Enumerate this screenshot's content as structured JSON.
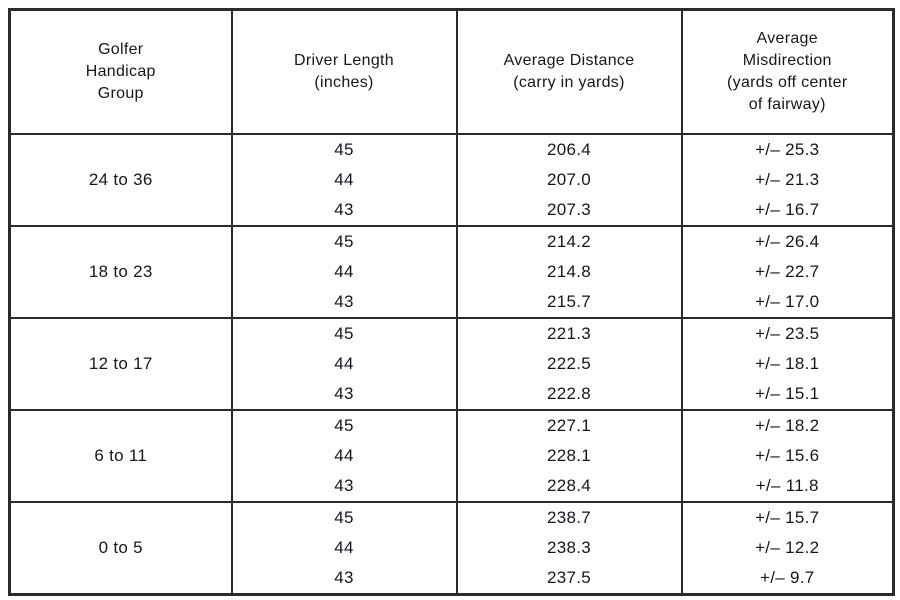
{
  "colors": {
    "background": "#ffffff",
    "border": "#2b2b2b",
    "text": "#16161e"
  },
  "table": {
    "header_lines": [
      [
        "Golfer",
        "Handicap",
        "Group"
      ],
      [
        "Driver Length",
        "(inches)"
      ],
      [
        "Average Distance",
        "(carry in yards)"
      ],
      [
        "Average",
        "Misdirection",
        "(yards off center",
        "of fairway)"
      ]
    ],
    "groups": [
      {
        "label": "24 to 36",
        "rows": [
          {
            "length": "45",
            "distance": "206.4",
            "misdirection": "+/– 25.3"
          },
          {
            "length": "44",
            "distance": "207.0",
            "misdirection": "+/– 21.3"
          },
          {
            "length": "43",
            "distance": "207.3",
            "misdirection": "+/– 16.7"
          }
        ]
      },
      {
        "label": "18 to 23",
        "rows": [
          {
            "length": "45",
            "distance": "214.2",
            "misdirection": "+/– 26.4"
          },
          {
            "length": "44",
            "distance": "214.8",
            "misdirection": "+/– 22.7"
          },
          {
            "length": "43",
            "distance": "215.7",
            "misdirection": "+/– 17.0"
          }
        ]
      },
      {
        "label": "12 to 17",
        "rows": [
          {
            "length": "45",
            "distance": "221.3",
            "misdirection": "+/– 23.5"
          },
          {
            "length": "44",
            "distance": "222.5",
            "misdirection": "+/– 18.1"
          },
          {
            "length": "43",
            "distance": "222.8",
            "misdirection": "+/– 15.1"
          }
        ]
      },
      {
        "label": "6 to 11",
        "rows": [
          {
            "length": "45",
            "distance": "227.1",
            "misdirection": "+/– 18.2"
          },
          {
            "length": "44",
            "distance": "228.1",
            "misdirection": "+/– 15.6"
          },
          {
            "length": "43",
            "distance": "228.4",
            "misdirection": "+/– 11.8"
          }
        ]
      },
      {
        "label": "0 to 5",
        "rows": [
          {
            "length": "45",
            "distance": "238.7",
            "misdirection": "+/– 15.7"
          },
          {
            "length": "44",
            "distance": "238.3",
            "misdirection": "+/– 12.2"
          },
          {
            "length": "43",
            "distance": "237.5",
            "misdirection": "+/– 9.7"
          }
        ]
      }
    ]
  },
  "chart_data": {
    "type": "table",
    "title": "",
    "columns": [
      "Golfer Handicap Group",
      "Driver Length (inches)",
      "Average Distance (carry in yards)",
      "Average Misdirection (yards off center of fairway)"
    ],
    "rows": [
      [
        "24 to 36",
        45,
        206.4,
        "+/– 25.3"
      ],
      [
        "24 to 36",
        44,
        207.0,
        "+/– 21.3"
      ],
      [
        "24 to 36",
        43,
        207.3,
        "+/– 16.7"
      ],
      [
        "18 to 23",
        45,
        214.2,
        "+/– 26.4"
      ],
      [
        "18 to 23",
        44,
        214.8,
        "+/– 22.7"
      ],
      [
        "18 to 23",
        43,
        215.7,
        "+/– 17.0"
      ],
      [
        "12 to 17",
        45,
        221.3,
        "+/– 23.5"
      ],
      [
        "12 to 17",
        44,
        222.5,
        "+/– 18.1"
      ],
      [
        "12 to 17",
        43,
        222.8,
        "+/– 15.1"
      ],
      [
        "6 to 11",
        45,
        227.1,
        "+/– 18.2"
      ],
      [
        "6 to 11",
        44,
        228.1,
        "+/– 15.6"
      ],
      [
        "6 to 11",
        43,
        228.4,
        "+/– 11.8"
      ],
      [
        "0 to 5",
        45,
        238.7,
        "+/– 15.7"
      ],
      [
        "0 to 5",
        44,
        238.3,
        "+/– 12.2"
      ],
      [
        "0 to 5",
        43,
        237.5,
        "+/– 9.7"
      ]
    ]
  }
}
